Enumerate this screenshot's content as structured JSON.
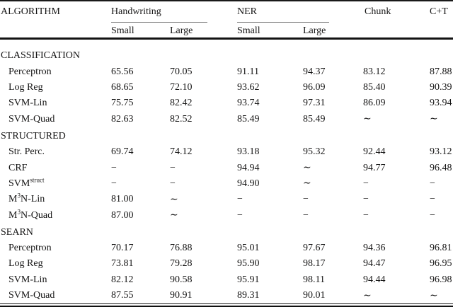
{
  "table": {
    "header": {
      "algorithm_label": "ALGORITHM",
      "groups": [
        {
          "label": "Handwriting",
          "subcols": [
            "Small",
            "Large"
          ]
        },
        {
          "label": "NER",
          "subcols": [
            "Small",
            "Large"
          ]
        },
        {
          "label": "Chunk",
          "subcols": []
        },
        {
          "label": "C+T",
          "subcols": []
        }
      ]
    },
    "symbols": {
      "not_run": "∼",
      "not_applicable": "−"
    },
    "sections": [
      {
        "title": "CLASSIFICATION",
        "rows": [
          {
            "label": "Perceptron",
            "values": [
              "65.56",
              "70.05",
              "91.11",
              "94.37",
              "83.12",
              "87.88"
            ]
          },
          {
            "label": "Log Reg",
            "values": [
              "68.65",
              "72.10",
              "93.62",
              "96.09",
              "85.40",
              "90.39"
            ]
          },
          {
            "label": "SVM-Lin",
            "values": [
              "75.75",
              "82.42",
              "93.74",
              "97.31",
              "86.09",
              "93.94"
            ]
          },
          {
            "label": "SVM-Quad",
            "values": [
              "82.63",
              "82.52",
              "85.49",
              "85.49",
              "∼",
              "∼"
            ]
          }
        ]
      },
      {
        "title": "STRUCTURED",
        "rows": [
          {
            "label": "Str. Perc.",
            "values": [
              "69.74",
              "74.12",
              "93.18",
              "95.32",
              "92.44",
              "93.12"
            ]
          },
          {
            "label": "CRF",
            "values": [
              "−",
              "−",
              "94.94",
              "∼",
              "94.77",
              "96.48"
            ]
          },
          {
            "label": "SVM^{struct}",
            "values": [
              "−",
              "−",
              "94.90",
              "∼",
              "−",
              "−"
            ]
          },
          {
            "label": "M^{3}N-Lin",
            "values": [
              "81.00",
              "∼",
              "−",
              "−",
              "−",
              "−"
            ]
          },
          {
            "label": "M^{3}N-Quad",
            "values": [
              "87.00",
              "∼",
              "−",
              "−",
              "−",
              "−"
            ]
          }
        ]
      },
      {
        "title": "SEARN",
        "rows": [
          {
            "label": "Perceptron",
            "values": [
              "70.17",
              "76.88",
              "95.01",
              "97.67",
              "94.36",
              "96.81"
            ]
          },
          {
            "label": "Log Reg",
            "values": [
              "73.81",
              "79.28",
              "95.90",
              "98.17",
              "94.47",
              "96.95"
            ]
          },
          {
            "label": "SVM-Lin",
            "values": [
              "82.12",
              "90.58",
              "95.91",
              "98.11",
              "94.44",
              "96.98"
            ]
          },
          {
            "label": "SVM-Quad",
            "values": [
              "87.55",
              "90.91",
              "89.31",
              "90.01",
              "∼",
              "∼"
            ]
          }
        ]
      }
    ]
  }
}
